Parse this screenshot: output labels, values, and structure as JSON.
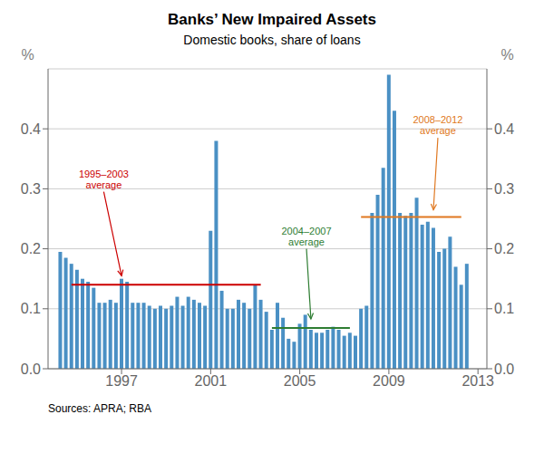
{
  "chart_data": {
    "type": "bar",
    "title": "Banks’ New Impaired Assets",
    "subtitle": "Domestic books, share of loans",
    "source": "Sources: APRA; RBA",
    "color": "#4A90C4",
    "grid": true,
    "y_label": "%",
    "y2_label": "%",
    "xlim": [
      1993.7,
      2013.4
    ],
    "xticks": [
      1997,
      2001,
      2005,
      2009,
      2013
    ],
    "ylim": [
      0.0,
      0.5
    ],
    "yticks": [
      {
        "value": 0.0,
        "label": "0.0"
      },
      {
        "value": 0.1,
        "label": "0.1"
      },
      {
        "value": 0.2,
        "label": "0.2"
      },
      {
        "value": 0.3,
        "label": "0.3"
      },
      {
        "value": 0.4,
        "label": "0.4"
      }
    ],
    "y2lim": [
      0.0,
      0.5
    ],
    "y2ticks": [
      {
        "value": 0.0,
        "label": "0.0"
      },
      {
        "value": 0.1,
        "label": "0.1"
      },
      {
        "value": 0.2,
        "label": "0.2"
      },
      {
        "value": 0.3,
        "label": "0.3"
      },
      {
        "value": 0.4,
        "label": "0.4"
      }
    ],
    "x": [
      1994.25,
      1994.5,
      1994.75,
      1995.0,
      1995.25,
      1995.5,
      1995.75,
      1996.0,
      1996.25,
      1996.5,
      1996.75,
      1997.0,
      1997.25,
      1997.5,
      1997.75,
      1998.0,
      1998.25,
      1998.5,
      1998.75,
      1999.0,
      1999.25,
      1999.5,
      1999.75,
      2000.0,
      2000.25,
      2000.5,
      2000.75,
      2001.0,
      2001.25,
      2001.5,
      2001.75,
      2002.0,
      2002.25,
      2002.5,
      2002.75,
      2003.0,
      2003.25,
      2003.5,
      2003.75,
      2004.0,
      2004.25,
      2004.5,
      2004.75,
      2005.0,
      2005.25,
      2005.5,
      2005.75,
      2006.0,
      2006.25,
      2006.5,
      2006.75,
      2007.0,
      2007.25,
      2007.5,
      2007.75,
      2008.0,
      2008.25,
      2008.5,
      2008.75,
      2009.0,
      2009.25,
      2009.5,
      2009.75,
      2010.0,
      2010.25,
      2010.5,
      2010.75,
      2011.0,
      2011.25,
      2011.5,
      2011.75,
      2012.0,
      2012.25,
      2012.5
    ],
    "values": [
      0.195,
      0.185,
      0.175,
      0.165,
      0.15,
      0.145,
      0.135,
      0.11,
      0.11,
      0.115,
      0.11,
      0.15,
      0.145,
      0.11,
      0.11,
      0.11,
      0.105,
      0.1,
      0.105,
      0.1,
      0.105,
      0.12,
      0.105,
      0.12,
      0.115,
      0.11,
      0.105,
      0.23,
      0.38,
      0.13,
      0.1,
      0.1,
      0.115,
      0.11,
      0.1,
      0.14,
      0.115,
      0.095,
      0.065,
      0.11,
      0.085,
      0.05,
      0.045,
      0.075,
      0.09,
      0.065,
      0.06,
      0.06,
      0.065,
      0.07,
      0.065,
      0.055,
      0.06,
      0.055,
      0.1,
      0.105,
      0.26,
      0.29,
      0.335,
      0.49,
      0.43,
      0.26,
      0.255,
      0.26,
      0.285,
      0.24,
      0.245,
      0.235,
      0.195,
      0.2,
      0.22,
      0.17,
      0.14,
      0.175
    ],
    "reference_lines": [
      {
        "value": 0.14,
        "x_start": 1994.75,
        "x_end": 2003.25,
        "color": "#CC0000"
      },
      {
        "value": 0.068,
        "x_start": 2003.75,
        "x_end": 2007.25,
        "color": "#2E7D32"
      },
      {
        "value": 0.253,
        "x_start": 2007.75,
        "x_end": 2012.25,
        "color": "#E07820"
      }
    ],
    "annotations": [
      {
        "text": "1995–2003\naverage",
        "x": 1996.2,
        "y": 0.295,
        "arrow_x": 1997.0,
        "arrow_y": 0.155,
        "color": "#CC0000"
      },
      {
        "text": "2004–2007\naverage",
        "x": 2005.3,
        "y": 0.2,
        "arrow_x": 2005.5,
        "arrow_y": 0.083,
        "color": "#2E7D32"
      },
      {
        "text": "2008–2012\naverage",
        "x": 2011.2,
        "y": 0.385,
        "arrow_x": 2011.0,
        "arrow_y": 0.265,
        "color": "#E07820"
      }
    ]
  }
}
